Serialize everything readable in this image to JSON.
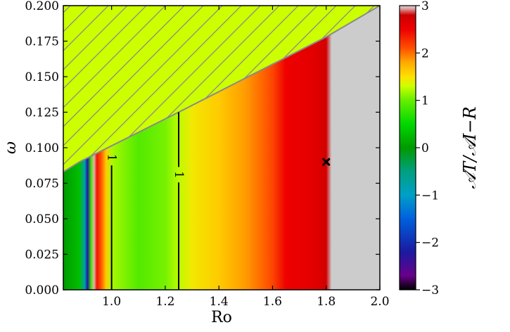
{
  "chart_data": {
    "type": "heatmap",
    "xlabel": "Ro",
    "ylabel": "ω",
    "xlim": [
      0.82,
      2.0
    ],
    "ylim": [
      0.0,
      0.2
    ],
    "x_ticks": [
      {
        "value": 1.0,
        "label": "1.0"
      },
      {
        "value": 1.2,
        "label": "1.2"
      },
      {
        "value": 1.4,
        "label": "1.4"
      },
      {
        "value": 1.6,
        "label": "1.6"
      },
      {
        "value": 1.8,
        "label": "1.8"
      },
      {
        "value": 2.0,
        "label": "2.0"
      }
    ],
    "y_ticks": [
      {
        "value": 0.0,
        "label": "0.000"
      },
      {
        "value": 0.025,
        "label": "0.025"
      },
      {
        "value": 0.05,
        "label": "0.050"
      },
      {
        "value": 0.075,
        "label": "0.075"
      },
      {
        "value": 0.1,
        "label": "0.100"
      },
      {
        "value": 0.125,
        "label": "0.125"
      },
      {
        "value": 0.15,
        "label": "0.150"
      },
      {
        "value": 0.175,
        "label": "0.175"
      },
      {
        "value": 0.2,
        "label": "0.200"
      }
    ],
    "colorbar": {
      "title": "𝒜T/𝒜I−R",
      "range": [
        -3,
        3
      ],
      "ticks": [
        {
          "value": 3,
          "label": "3"
        },
        {
          "value": 2,
          "label": "2"
        },
        {
          "value": 1,
          "label": "1"
        },
        {
          "value": 0,
          "label": "0"
        },
        {
          "value": -1,
          "label": "−1"
        },
        {
          "value": -2,
          "label": "−2"
        },
        {
          "value": -3,
          "label": "−3"
        }
      ],
      "colors": [
        {
          "value": -3.0,
          "color": "#000000"
        },
        {
          "value": -2.7,
          "color": "#6a008a"
        },
        {
          "value": -2.2,
          "color": "#1a1aa0"
        },
        {
          "value": -1.5,
          "color": "#0060dd"
        },
        {
          "value": -1.0,
          "color": "#00a0c8"
        },
        {
          "value": -0.5,
          "color": "#00a080"
        },
        {
          "value": 0.0,
          "color": "#009a00"
        },
        {
          "value": 0.5,
          "color": "#00d800"
        },
        {
          "value": 1.0,
          "color": "#66ee00"
        },
        {
          "value": 1.3,
          "color": "#ccff00"
        },
        {
          "value": 1.5,
          "color": "#ffe000"
        },
        {
          "value": 1.8,
          "color": "#ffaa00"
        },
        {
          "value": 2.1,
          "color": "#ff5000"
        },
        {
          "value": 2.5,
          "color": "#ee0000"
        },
        {
          "value": 2.8,
          "color": "#cc0000"
        },
        {
          "value": 2.95,
          "color": "#e0b0b0"
        },
        {
          "value": 3.0,
          "color": "#cccccc"
        }
      ]
    },
    "field_columns": [
      {
        "ro": 0.82,
        "value": 0.0
      },
      {
        "ro": 0.88,
        "value": 0.3
      },
      {
        "ro": 0.9,
        "value": -0.8
      },
      {
        "ro": 0.91,
        "value": -2.2
      },
      {
        "ro": 0.925,
        "value": 0.9
      },
      {
        "ro": 0.935,
        "value": 2.95
      },
      {
        "ro": 0.945,
        "value": 2.4
      },
      {
        "ro": 0.96,
        "value": 2.1
      },
      {
        "ro": 0.98,
        "value": 1.6
      },
      {
        "ro": 1.0,
        "value": 1.2
      },
      {
        "ro": 1.1,
        "value": 0.9
      },
      {
        "ro": 1.2,
        "value": 1.05
      },
      {
        "ro": 1.25,
        "value": 1.25
      },
      {
        "ro": 1.3,
        "value": 1.45
      },
      {
        "ro": 1.4,
        "value": 1.62
      },
      {
        "ro": 1.5,
        "value": 1.85
      },
      {
        "ro": 1.6,
        "value": 2.15
      },
      {
        "ro": 1.65,
        "value": 2.5
      },
      {
        "ro": 1.75,
        "value": 2.6
      },
      {
        "ro": 1.8,
        "value": 2.75
      },
      {
        "ro": 1.82,
        "value": 3.0
      },
      {
        "ro": 2.0,
        "value": 3.0
      }
    ],
    "excluded_region": {
      "boundary": [
        {
          "ro": 0.82,
          "omega": 0.083
        },
        {
          "ro": 0.88,
          "omega": 0.09
        },
        {
          "ro": 1.25,
          "omega": 0.125
        },
        {
          "ro": 1.8,
          "omega": 0.178
        },
        {
          "ro": 2.0,
          "omega": 0.2
        }
      ],
      "fill": "#ccff00",
      "hatch": "/",
      "hatch_color": "#8a8a8a"
    },
    "contours": [
      {
        "level": "1",
        "ro": 1.0,
        "omega_range": [
          0.0,
          0.087
        ],
        "label_omega": 0.093
      },
      {
        "level": "1",
        "ro": 1.25,
        "omega_range": [
          0.0,
          0.125
        ],
        "label_omega": 0.081
      }
    ],
    "marker": {
      "ro": 1.8,
      "omega": 0.09,
      "symbol": "x"
    }
  }
}
